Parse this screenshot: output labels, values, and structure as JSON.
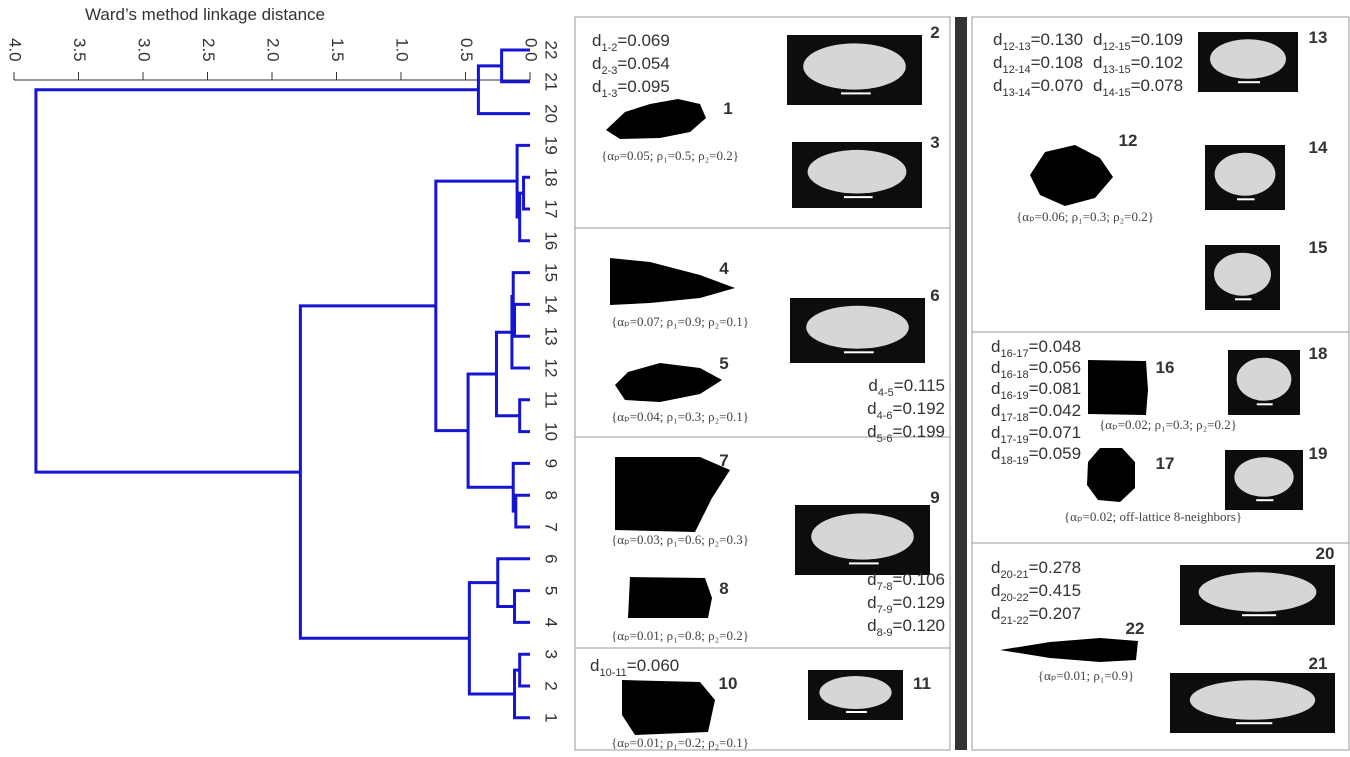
{
  "chart_data": {
    "type": "dendrogram",
    "title": "Ward’s method linkage distance",
    "color": "#1414d2",
    "xlim": [
      4,
      0
    ],
    "xticks": [
      {
        "value": 4,
        "label": "4.0"
      },
      3.5,
      {
        "value": 3,
        "label": "3.0"
      },
      2.5,
      {
        "value": 2,
        "label": "2.0"
      },
      1.5,
      {
        "value": 1,
        "label": "1.0"
      },
      0.5,
      {
        "value": 0,
        "label": "0.0"
      }
    ],
    "tree": {
      "height": 3.83,
      "children": [
        {
          "height": 0.4,
          "children": [
            {
              "height": 0.22,
              "children": [
                "22",
                "21"
              ]
            },
            "20"
          ]
        },
        {
          "height": 1.78,
          "children": [
            {
              "height": 0.73,
              "children": [
                {
                  "height": 0.1,
                  "children": [
                    "19",
                    {
                      "height": 0.08,
                      "children": [
                        {
                          "height": 0.05,
                          "children": [
                            "18",
                            "17"
                          ]
                        },
                        "16"
                      ]
                    }
                  ]
                },
                {
                  "height": 0.48,
                  "children": [
                    {
                      "height": 0.26,
                      "children": [
                        {
                          "height": 0.14,
                          "children": [
                            {
                              "height": 0.13,
                              "children": [
                                "15",
                                {
                                  "height": 0.12,
                                  "children": [
                                    "14",
                                    "13"
                                  ]
                                }
                              ]
                            },
                            "12"
                          ]
                        },
                        {
                          "height": 0.08,
                          "children": [
                            "11",
                            "10"
                          ]
                        }
                      ]
                    },
                    {
                      "height": 0.13,
                      "children": [
                        "9",
                        {
                          "height": 0.11,
                          "children": [
                            "8",
                            "7"
                          ]
                        }
                      ]
                    }
                  ]
                }
              ]
            },
            {
              "height": 0.47,
              "children": [
                {
                  "height": 0.25,
                  "children": [
                    "6",
                    {
                      "height": 0.12,
                      "children": [
                        "5",
                        "4"
                      ]
                    }
                  ]
                },
                {
                  "height": 0.12,
                  "children": [
                    {
                      "height": 0.08,
                      "children": [
                        "3",
                        "2"
                      ]
                    },
                    "1"
                  ]
                }
              ]
            }
          ]
        }
      ]
    }
  },
  "panels": [
    {
      "distances": [
        {
          "base": "d",
          "sub": "1-2",
          "rest": "=0.069"
        },
        {
          "base": "d",
          "sub": "2-3",
          "rest": "=0.054"
        },
        {
          "base": "d",
          "sub": "1-3",
          "rest": "=0.095"
        }
      ],
      "ids": [
        "1",
        "2",
        "3"
      ],
      "params": [
        "{αₚ=0.05; ρ₁=0.5; ρ₂=0.2}"
      ]
    },
    {
      "distances": [
        {
          "base": "d",
          "sub": "4-5",
          "rest": "=0.115"
        },
        {
          "base": "d",
          "sub": "4-6",
          "rest": "=0.192"
        },
        {
          "base": "d",
          "sub": "5-6",
          "rest": "=0.199"
        }
      ],
      "ids": [
        "4",
        "5",
        "6"
      ],
      "params": [
        "{αₚ=0.07; ρ₁=0.9; ρ₂=0.1}",
        "{αₚ=0.04; ρ₁=0.3; ρ₂=0.1}"
      ]
    },
    {
      "distances": [
        {
          "base": "d",
          "sub": "7-8",
          "rest": "=0.106"
        },
        {
          "base": "d",
          "sub": "7-9",
          "rest": "=0.129"
        },
        {
          "base": "d",
          "sub": "8-9",
          "rest": "=0.120"
        }
      ],
      "ids": [
        "7",
        "8",
        "9"
      ],
      "params": [
        "{αₚ=0.03; ρ₁=0.6; ρ₂=0.3}",
        "{αₚ=0.01; ρ₁=0.8; ρ₂=0.2}"
      ]
    },
    {
      "distances": [
        {
          "base": "d",
          "sub": "10-11",
          "rest": "=0.060"
        }
      ],
      "ids": [
        "10",
        "11"
      ],
      "params": [
        "{αₚ=0.01; ρ₁=0.2; ρ₂=0.1}"
      ]
    },
    {
      "distances": [
        {
          "base": "d",
          "sub": "12-13",
          "rest": "=0.130"
        },
        {
          "base": "d",
          "sub": "12-14",
          "rest": "=0.108"
        },
        {
          "base": "d",
          "sub": "13-14",
          "rest": "=0.070"
        },
        {
          "base": "d",
          "sub": "12-15",
          "rest": "=0.109"
        },
        {
          "base": "d",
          "sub": "13-15",
          "rest": "=0.102"
        },
        {
          "base": "d",
          "sub": "14-15",
          "rest": "=0.078"
        }
      ],
      "ids": [
        "12",
        "13",
        "14",
        "15"
      ],
      "params": [
        "{αₚ=0.06; ρ₁=0.3; ρ₂=0.2}"
      ]
    },
    {
      "distances": [
        {
          "base": "d",
          "sub": "16-17",
          "rest": "=0.048"
        },
        {
          "base": "d",
          "sub": "16-18",
          "rest": "=0.056"
        },
        {
          "base": "d",
          "sub": "16-19",
          "rest": "=0.081"
        },
        {
          "base": "d",
          "sub": "17-18",
          "rest": "=0.042"
        },
        {
          "base": "d",
          "sub": "17-19",
          "rest": "=0.071"
        },
        {
          "base": "d",
          "sub": "18-19",
          "rest": "=0.059"
        }
      ],
      "ids": [
        "16",
        "17",
        "18",
        "19"
      ],
      "params": [
        "{αₚ=0.02; ρ₁=0.3; ρ₂=0.2}",
        "{αₚ=0.02; off-lattice 8-neighbors}"
      ]
    },
    {
      "distances": [
        {
          "base": "d",
          "sub": "20-21",
          "rest": "=0.278"
        },
        {
          "base": "d",
          "sub": "20-22",
          "rest": "=0.415"
        },
        {
          "base": "d",
          "sub": "21-22",
          "rest": "=0.207"
        }
      ],
      "ids": [
        "20",
        "21",
        "22"
      ],
      "params": [
        "{αₚ=0.01; ρ₁=0.9}"
      ]
    }
  ]
}
